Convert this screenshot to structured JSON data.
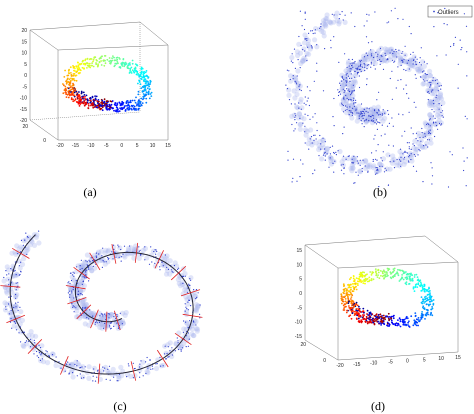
{
  "panels": [
    {
      "label": "(a)",
      "z_ticks": [
        20,
        15,
        10,
        5,
        0,
        -5,
        -10,
        -15,
        -20
      ],
      "y_ticks": [
        20,
        0
      ],
      "x_ticks": [
        -20,
        -15,
        -10,
        -5,
        0,
        5,
        10,
        15
      ]
    },
    {
      "label": "(b)",
      "legend": "Outliers"
    },
    {
      "label": "(c)"
    },
    {
      "label": "(d)",
      "z_ticks": [
        15,
        10,
        5,
        0,
        -5,
        -10,
        -15
      ],
      "y_ticks": [
        20,
        0
      ],
      "x_ticks": [
        -20,
        -15,
        -10,
        -5,
        0,
        5,
        10,
        15
      ]
    }
  ]
}
